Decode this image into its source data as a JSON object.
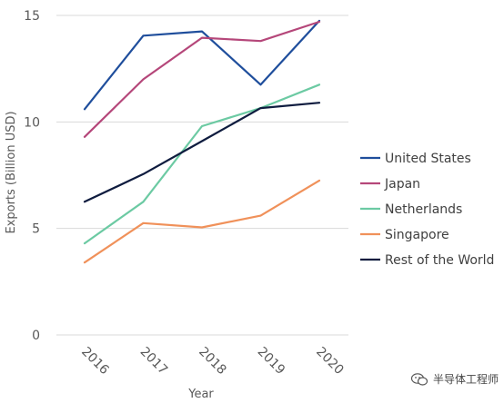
{
  "chart_data": {
    "type": "line",
    "x": [
      "2016",
      "2017",
      "2018",
      "2019",
      "2020"
    ],
    "ylabel": "Exports (Billion USD)",
    "xlabel": "Year",
    "ylim": [
      0,
      15
    ],
    "yticks": [
      0,
      5,
      10,
      15
    ],
    "grid": true,
    "legend_position": "right",
    "series": [
      {
        "name": "United States",
        "color": "#1f4e9c",
        "values": [
          10.6,
          14.05,
          14.25,
          11.75,
          14.75
        ]
      },
      {
        "name": "Japan",
        "color": "#b5477a",
        "values": [
          9.3,
          12.0,
          13.95,
          13.8,
          14.7
        ]
      },
      {
        "name": "Netherlands",
        "color": "#6ccaa3",
        "values": [
          4.3,
          6.25,
          9.8,
          10.65,
          11.75
        ]
      },
      {
        "name": "Singapore",
        "color": "#f0915a",
        "values": [
          3.4,
          5.25,
          5.05,
          5.6,
          7.25
        ]
      },
      {
        "name": "Rest of the World",
        "color": "#0f1c3f",
        "values": [
          6.25,
          7.55,
          9.1,
          10.65,
          10.9
        ]
      }
    ]
  },
  "watermark": {
    "text": "半导体工程师",
    "icon": "wechat-icon"
  }
}
